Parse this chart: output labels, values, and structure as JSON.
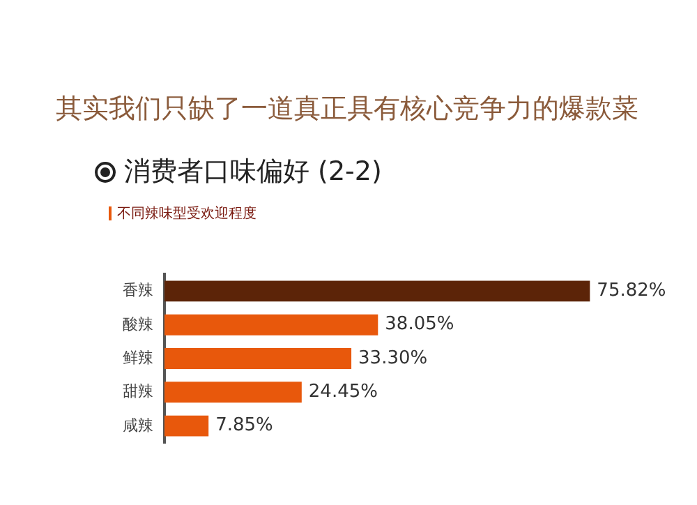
{
  "chart_data": {
    "type": "bar",
    "orientation": "horizontal",
    "title": "其实我们只缺了一道真正具有核心竞争力的爆款菜",
    "subtitle": "消费者口味偏好 (2-2)",
    "annotations": [
      "不同辣味型受欢迎程度"
    ],
    "categories": [
      "香辣",
      "酸辣",
      "鲜辣",
      "甜辣",
      "咸辣"
    ],
    "values": [
      75.82,
      38.05,
      33.3,
      24.45,
      7.85
    ],
    "value_labels": [
      "75.82%",
      "38.05%",
      "33.30%",
      "24.45%",
      "7.85%"
    ],
    "colors": [
      "#5c2408",
      "#e8580c",
      "#e8580c",
      "#e8580c",
      "#e8580c"
    ],
    "grid": false,
    "legend": false
  }
}
